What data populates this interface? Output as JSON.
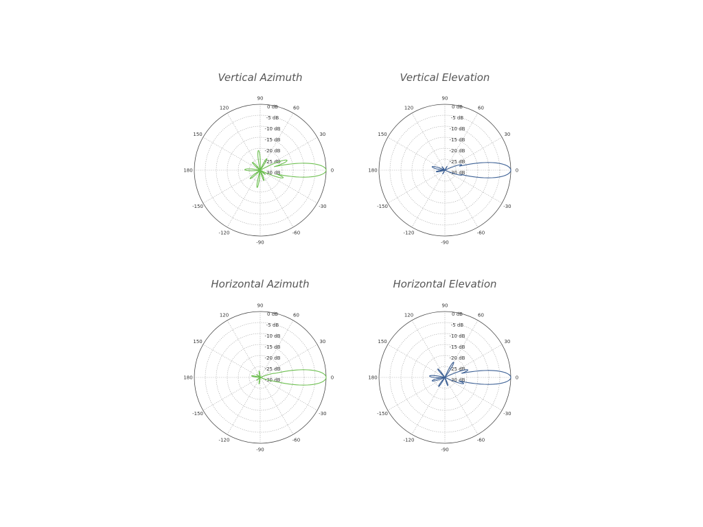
{
  "chart_data": [
    {
      "type": "polar",
      "title": "Vertical Azimuth",
      "color": "#6cbf4f",
      "angle_ticks": [
        "0",
        "30",
        "60",
        "90",
        "120",
        "150",
        "180",
        "-150",
        "-120",
        "-90",
        "-60",
        "-30"
      ],
      "radial_ticks": [
        "0 dB",
        "-5 dB",
        "-10 dB",
        "-15 dB",
        "-20 dB",
        "-25 dB",
        "-30 dB"
      ],
      "rlim": [
        -30,
        0
      ],
      "grid": true,
      "series": [
        {
          "lobes": [
            {
              "angle": 0,
              "gain": 0,
              "width": 10
            },
            {
              "angle": 20,
              "gain": -17,
              "width": 8
            },
            {
              "angle": -18,
              "gain": -19,
              "width": 8
            },
            {
              "angle": 60,
              "gain": -24,
              "width": 10
            },
            {
              "angle": 95,
              "gain": -21,
              "width": 9
            },
            {
              "angle": 135,
              "gain": -25,
              "width": 12
            },
            {
              "angle": 178,
              "gain": -23,
              "width": 12
            },
            {
              "angle": -140,
              "gain": -24,
              "width": 10
            },
            {
              "angle": -100,
              "gain": -22,
              "width": 8
            },
            {
              "angle": -70,
              "gain": -25,
              "width": 10
            },
            {
              "angle": -40,
              "gain": -27,
              "width": 10
            }
          ]
        }
      ]
    },
    {
      "type": "polar",
      "title": "Vertical Elevation",
      "color": "#3b5f94",
      "angle_ticks": [
        "0",
        "30",
        "60",
        "90",
        "120",
        "150",
        "180",
        "-150",
        "-120",
        "-90",
        "-60",
        "-30"
      ],
      "radial_ticks": [
        "0 dB",
        "-5 dB",
        "-10 dB",
        "-15 dB",
        "-20 dB",
        "-25 dB",
        "-30 dB"
      ],
      "rlim": [
        -30,
        0
      ],
      "grid": true,
      "series": [
        {
          "lobes": [
            {
              "angle": 0,
              "gain": 0,
              "width": 11
            },
            {
              "angle": 18,
              "gain": -22,
              "width": 8
            },
            {
              "angle": -16,
              "gain": -22,
              "width": 8
            },
            {
              "angle": 165,
              "gain": -24,
              "width": 14
            },
            {
              "angle": -170,
              "gain": -26,
              "width": 12
            },
            {
              "angle": 130,
              "gain": -28,
              "width": 12
            },
            {
              "angle": -120,
              "gain": -28,
              "width": 12
            },
            {
              "angle": 60,
              "gain": -28,
              "width": 10
            }
          ]
        }
      ]
    },
    {
      "type": "polar",
      "title": "Horizontal Azimuth",
      "color": "#6cbf4f",
      "angle_ticks": [
        "0",
        "30",
        "60",
        "90",
        "120",
        "150",
        "180",
        "-150",
        "-120",
        "-90",
        "-60",
        "-30"
      ],
      "radial_ticks": [
        "0 dB",
        "-5 dB",
        "-10 dB",
        "-15 dB",
        "-20 dB",
        "-25 dB",
        "-30 dB"
      ],
      "rlim": [
        -30,
        0
      ],
      "grid": true,
      "series": [
        {
          "lobes": [
            {
              "angle": 0,
              "gain": 0,
              "width": 11
            },
            {
              "angle": 15,
              "gain": -23,
              "width": 8
            },
            {
              "angle": -15,
              "gain": -24,
              "width": 8
            },
            {
              "angle": 170,
              "gain": -26,
              "width": 12
            },
            {
              "angle": 100,
              "gain": -27,
              "width": 10
            },
            {
              "angle": -100,
              "gain": -27,
              "width": 10
            },
            {
              "angle": 140,
              "gain": -28,
              "width": 10
            },
            {
              "angle": -140,
              "gain": -28,
              "width": 10
            }
          ]
        }
      ]
    },
    {
      "type": "polar",
      "title": "Horizontal Elevation",
      "color": "#3b5f94",
      "angle_ticks": [
        "0",
        "30",
        "60",
        "90",
        "120",
        "150",
        "180",
        "-150",
        "-120",
        "-90",
        "-60",
        "-30"
      ],
      "radial_ticks": [
        "0 dB",
        "-5 dB",
        "-10 dB",
        "-15 dB",
        "-20 dB",
        "-25 dB",
        "-30 dB"
      ],
      "rlim": [
        -30,
        0
      ],
      "grid": true,
      "series": [
        {
          "lobes": [
            {
              "angle": 0,
              "gain": 0,
              "width": 10
            },
            {
              "angle": 18,
              "gain": -19,
              "width": 8
            },
            {
              "angle": -18,
              "gain": -21,
              "width": 8
            },
            {
              "angle": 60,
              "gain": -22,
              "width": 9
            },
            {
              "angle": 175,
              "gain": -23,
              "width": 12
            },
            {
              "angle": -165,
              "gain": -24,
              "width": 12
            },
            {
              "angle": 130,
              "gain": -25,
              "width": 10
            },
            {
              "angle": -125,
              "gain": -25,
              "width": 10
            },
            {
              "angle": -70,
              "gain": -26,
              "width": 10
            }
          ]
        }
      ]
    }
  ]
}
